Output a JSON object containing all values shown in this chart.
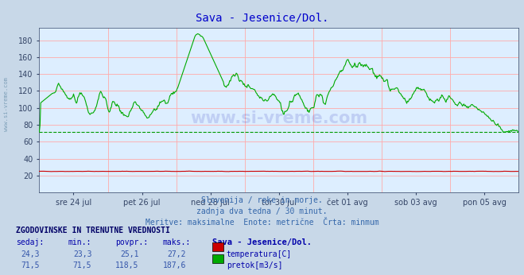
{
  "title": "Sava - Jesenice/Dol.",
  "title_color": "#0000cc",
  "bg_color": "#c8d8e8",
  "plot_bg_color": "#ddeeff",
  "grid_color": "#ffaaaa",
  "watermark": "www.si-vreme.com",
  "subtitle_lines": [
    "Slovenija / reke in morje.",
    "zadnja dva tedna / 30 minut.",
    "Meritve: maksimalne  Enote: metrične  Črta: minmum"
  ],
  "xlabel_ticks": [
    "sre 24 jul",
    "pet 26 jul",
    "ned 28 jul",
    "tor 30 jul",
    "čet 01 avg",
    "sob 03 avg",
    "pon 05 avg"
  ],
  "yticks": [
    20,
    40,
    60,
    80,
    100,
    120,
    140,
    160,
    180
  ],
  "ylim": [
    0,
    195
  ],
  "xlim": [
    0,
    672
  ],
  "temp_color": "#cc0000",
  "flow_color": "#00aa00",
  "min_line_color": "#009900",
  "legend_title": "Sava - Jesenice/Dol.",
  "legend_items": [
    {
      "label": "temperatura[C]",
      "color": "#cc0000"
    },
    {
      "label": "pretok[m3/s]",
      "color": "#00aa00"
    }
  ],
  "table_header": "ZGODOVINSKE IN TRENUTNE VREDNOSTI",
  "table_cols": [
    "sedaj:",
    "min.:",
    "povpr.:",
    "maks.:"
  ],
  "table_rows": [
    [
      24.3,
      23.3,
      25.1,
      27.2
    ],
    [
      71.5,
      71.5,
      118.5,
      187.6
    ]
  ],
  "n_points": 672,
  "temp_min": 23.3,
  "temp_max": 27.2,
  "temp_mean": 25.1,
  "flow_min": 71.5,
  "flow_max": 187.6,
  "flow_mean": 118.5
}
